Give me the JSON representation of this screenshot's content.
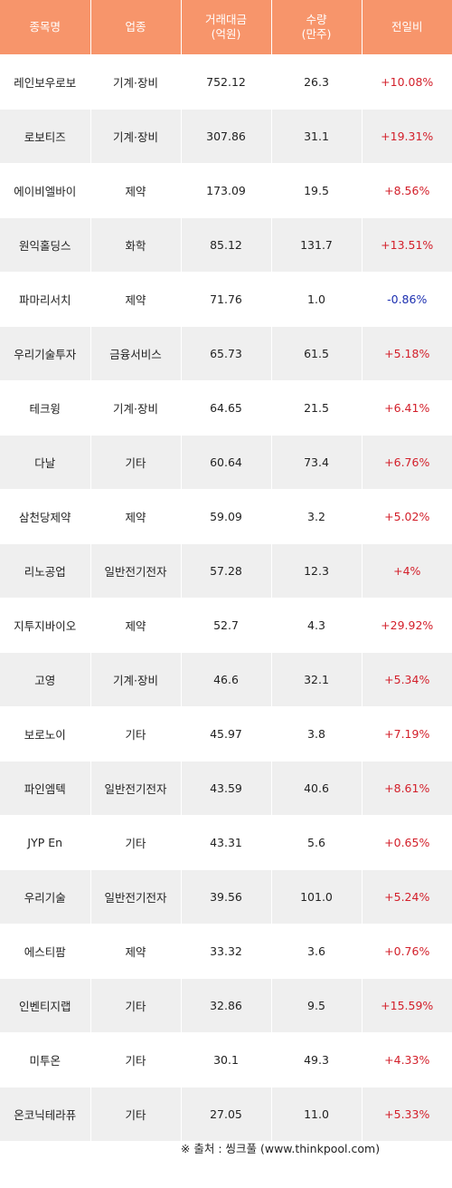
{
  "table": {
    "headers": {
      "name": "종목명",
      "sector": "업종",
      "amount": [
        "거래대금",
        "(억원)"
      ],
      "volume": [
        "수량",
        "(만주)"
      ],
      "change": "전일비"
    },
    "rows": [
      {
        "name": "레인보우로보",
        "sector": "기계·장비",
        "amount": "752.12",
        "volume": "26.3",
        "change": "+10.08%"
      },
      {
        "name": "로보티즈",
        "sector": "기계·장비",
        "amount": "307.86",
        "volume": "31.1",
        "change": "+19.31%"
      },
      {
        "name": "에이비엘바이",
        "sector": "제약",
        "amount": "173.09",
        "volume": "19.5",
        "change": "+8.56%"
      },
      {
        "name": "원익홀딩스",
        "sector": "화학",
        "amount": "85.12",
        "volume": "131.7",
        "change": "+13.51%"
      },
      {
        "name": "파마리서치",
        "sector": "제약",
        "amount": "71.76",
        "volume": "1.0",
        "change": "-0.86%"
      },
      {
        "name": "우리기술투자",
        "sector": "금융서비스",
        "amount": "65.73",
        "volume": "61.5",
        "change": "+5.18%"
      },
      {
        "name": "테크윙",
        "sector": "기계·장비",
        "amount": "64.65",
        "volume": "21.5",
        "change": "+6.41%"
      },
      {
        "name": "다날",
        "sector": "기타",
        "amount": "60.64",
        "volume": "73.4",
        "change": "+6.76%"
      },
      {
        "name": "삼천당제약",
        "sector": "제약",
        "amount": "59.09",
        "volume": "3.2",
        "change": "+5.02%"
      },
      {
        "name": "리노공업",
        "sector": "일반전기전자",
        "amount": "57.28",
        "volume": "12.3",
        "change": "+4%"
      },
      {
        "name": "지투지바이오",
        "sector": "제약",
        "amount": "52.7",
        "volume": "4.3",
        "change": "+29.92%"
      },
      {
        "name": "고영",
        "sector": "기계·장비",
        "amount": "46.6",
        "volume": "32.1",
        "change": "+5.34%"
      },
      {
        "name": "보로노이",
        "sector": "기타",
        "amount": "45.97",
        "volume": "3.8",
        "change": "+7.19%"
      },
      {
        "name": "파인엠텍",
        "sector": "일반전기전자",
        "amount": "43.59",
        "volume": "40.6",
        "change": "+8.61%"
      },
      {
        "name": "JYP En",
        "sector": "기타",
        "amount": "43.31",
        "volume": "5.6",
        "change": "+0.65%"
      },
      {
        "name": "우리기술",
        "sector": "일반전기전자",
        "amount": "39.56",
        "volume": "101.0",
        "change": "+5.24%"
      },
      {
        "name": "에스티팜",
        "sector": "제약",
        "amount": "33.32",
        "volume": "3.6",
        "change": "+0.76%"
      },
      {
        "name": "인벤티지랩",
        "sector": "기타",
        "amount": "32.86",
        "volume": "9.5",
        "change": "+15.59%"
      },
      {
        "name": "미투온",
        "sector": "기타",
        "amount": "30.1",
        "volume": "49.3",
        "change": "+4.33%"
      },
      {
        "name": "온코닉테라퓨",
        "sector": "기타",
        "amount": "27.05",
        "volume": "11.0",
        "change": "+5.33%"
      }
    ]
  },
  "footer": {
    "source": "※ 출처 : 씽크풀 (www.thinkpool.com)"
  },
  "colors": {
    "header_bg": "#f7956b",
    "up": "#d31f2a",
    "down": "#1c2fb0",
    "stripe": "#efefef"
  }
}
